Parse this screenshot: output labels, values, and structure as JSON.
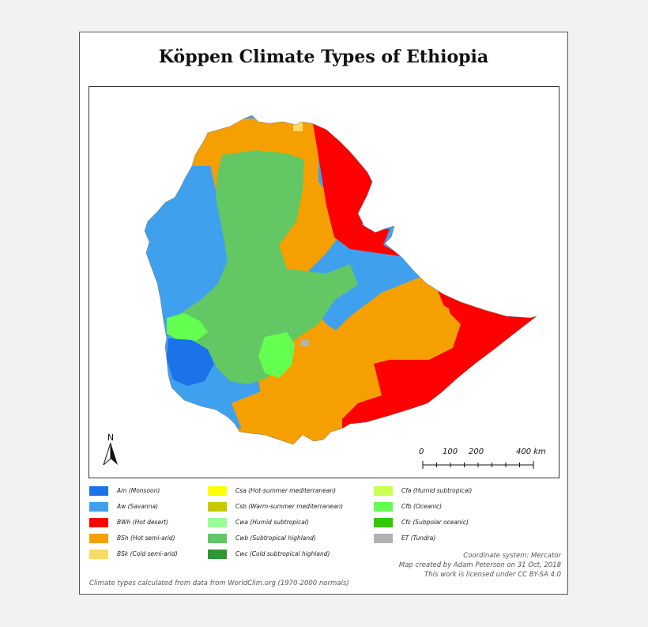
{
  "title": "Köppen Climate Types of Ethiopia",
  "north_label": "N",
  "scale": {
    "labels": [
      "0",
      "100",
      "200",
      "400 km"
    ],
    "values_km": [
      0,
      100,
      200,
      400
    ]
  },
  "legend": [
    {
      "code": "Am",
      "label": "Am (Monsoon)",
      "color": "#1a73e8"
    },
    {
      "code": "Aw",
      "label": "Aw (Savanna)",
      "color": "#3fa1ee"
    },
    {
      "code": "BWh",
      "label": "BWh (Hot desert)",
      "color": "#ff0000"
    },
    {
      "code": "BSh",
      "label": "BSh (Hot semi-arid)",
      "color": "#f5a000"
    },
    {
      "code": "BSk",
      "label": "BSk (Cold semi-arid)",
      "color": "#ffd966"
    },
    {
      "code": "Csa",
      "label": "Csa (Hot-summer mediterranean)",
      "color": "#ffff00"
    },
    {
      "code": "Csb",
      "label": "Csb (Warm-summer mediterranean)",
      "color": "#c8c800"
    },
    {
      "code": "Cwa",
      "label": "Cwa (Humid subtropical)",
      "color": "#96ff96"
    },
    {
      "code": "Cwb",
      "label": "Cwb (Subtropical highland)",
      "color": "#63c764"
    },
    {
      "code": "Cwc",
      "label": "Cwc (Cold subtropical highland)",
      "color": "#329632"
    },
    {
      "code": "Cfa",
      "label": "Cfa (Humid subtropical)",
      "color": "#c8ff50"
    },
    {
      "code": "Cfb",
      "label": "Cfb (Oceanic)",
      "color": "#64ff50"
    },
    {
      "code": "Cfc",
      "label": "Cfc (Subpolar oceanic)",
      "color": "#32c800"
    },
    {
      "code": "ET",
      "label": "ET (Tundra)",
      "color": "#b2b2b2"
    }
  ],
  "footer": {
    "coordinate_system": "Coordinate system: Mercator",
    "created_by": "Map created by Adam Peterson on 31 Oct, 2018",
    "license": "This work is licensed under CC BY-SA 4.0",
    "source": "Climate types calculated from data from WorldClim.org (1970-2000 normals)"
  }
}
